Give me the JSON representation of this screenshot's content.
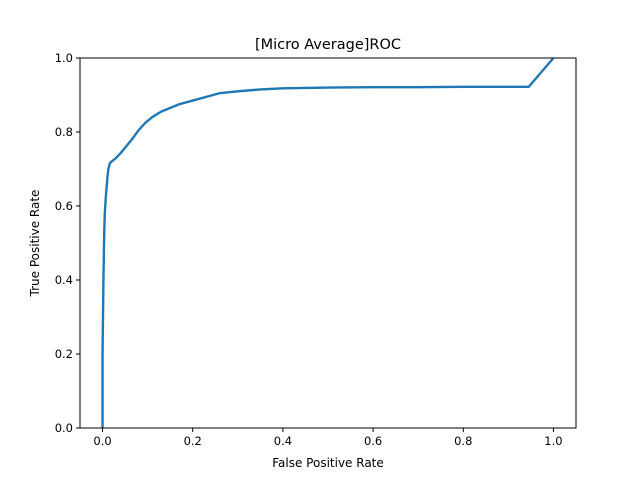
{
  "chart_data": {
    "type": "line",
    "title": "[Micro Average]ROC",
    "xlabel": "False Positive Rate",
    "ylabel": "True Positive Rate",
    "xlim": [
      -0.05,
      1.05
    ],
    "ylim": [
      0.0,
      1.0
    ],
    "xticks": [
      0.0,
      0.2,
      0.4,
      0.6,
      0.8,
      1.0
    ],
    "yticks": [
      0.0,
      0.2,
      0.4,
      0.6,
      0.8,
      1.0
    ],
    "xtick_labels": [
      "0.0",
      "0.2",
      "0.4",
      "0.6",
      "0.8",
      "1.0"
    ],
    "ytick_labels": [
      "0.0",
      "0.2",
      "0.4",
      "0.6",
      "0.8",
      "1.0"
    ],
    "grid": false,
    "legend": "none",
    "series": [
      {
        "color": "#1f77b4",
        "x": [
          0.0,
          0.0,
          0.001,
          0.002,
          0.003,
          0.004,
          0.005,
          0.007,
          0.009,
          0.011,
          0.013,
          0.016,
          0.02,
          0.025,
          0.03,
          0.038,
          0.045,
          0.055,
          0.065,
          0.08,
          0.095,
          0.11,
          0.13,
          0.15,
          0.17,
          0.2,
          0.23,
          0.26,
          0.3,
          0.35,
          0.4,
          0.5,
          0.6,
          0.7,
          0.8,
          0.9,
          0.945,
          1.0
        ],
        "y": [
          0.0,
          0.2,
          0.3,
          0.4,
          0.48,
          0.54,
          0.58,
          0.62,
          0.65,
          0.68,
          0.7,
          0.715,
          0.72,
          0.725,
          0.73,
          0.74,
          0.75,
          0.765,
          0.78,
          0.805,
          0.825,
          0.84,
          0.855,
          0.865,
          0.875,
          0.885,
          0.895,
          0.905,
          0.91,
          0.915,
          0.918,
          0.92,
          0.921,
          0.921,
          0.922,
          0.922,
          0.922,
          1.0
        ]
      }
    ]
  }
}
